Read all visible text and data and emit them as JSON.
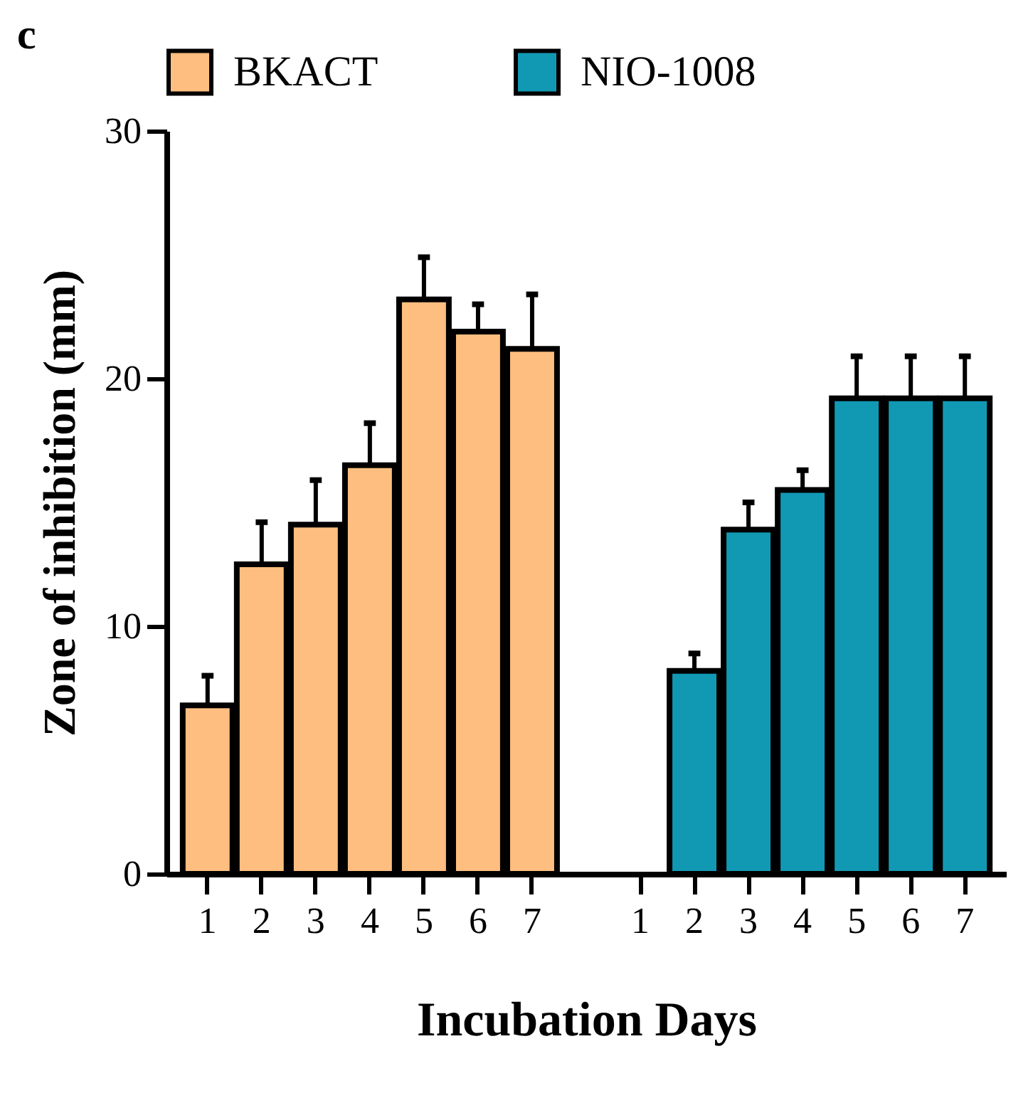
{
  "chart_data": {
    "type": "bar",
    "annotations": [
      "c"
    ],
    "xlabel": "Incubation Days",
    "ylabel": "Zone of inhibition (mm)",
    "categories": [
      "1",
      "2",
      "3",
      "4",
      "5",
      "6",
      "7",
      null,
      "1",
      "2",
      "3",
      "4",
      "5",
      "6",
      "7"
    ],
    "series": [
      {
        "name": "BKACT",
        "color": "#fdbe7f",
        "values": [
          6.8,
          12.5,
          14.1,
          16.5,
          23.2,
          21.9,
          21.2,
          null,
          null,
          null,
          null,
          null,
          null,
          null,
          null
        ],
        "errors": [
          1.2,
          1.7,
          1.8,
          1.7,
          1.7,
          1.1,
          2.2,
          null,
          null,
          null,
          null,
          null,
          null,
          null,
          null
        ]
      },
      {
        "name": "NIO-1008",
        "color": "#1199b4",
        "values": [
          null,
          null,
          null,
          null,
          null,
          null,
          null,
          null,
          null,
          8.2,
          13.9,
          15.5,
          19.2,
          19.2,
          19.2
        ],
        "errors": [
          null,
          null,
          null,
          null,
          null,
          null,
          null,
          null,
          null,
          0.7,
          1.1,
          0.8,
          1.7,
          1.7,
          1.7
        ]
      }
    ],
    "ylim": [
      0,
      30
    ],
    "yticks": [
      0,
      10,
      20,
      30
    ],
    "legend": "top",
    "grid": false
  }
}
